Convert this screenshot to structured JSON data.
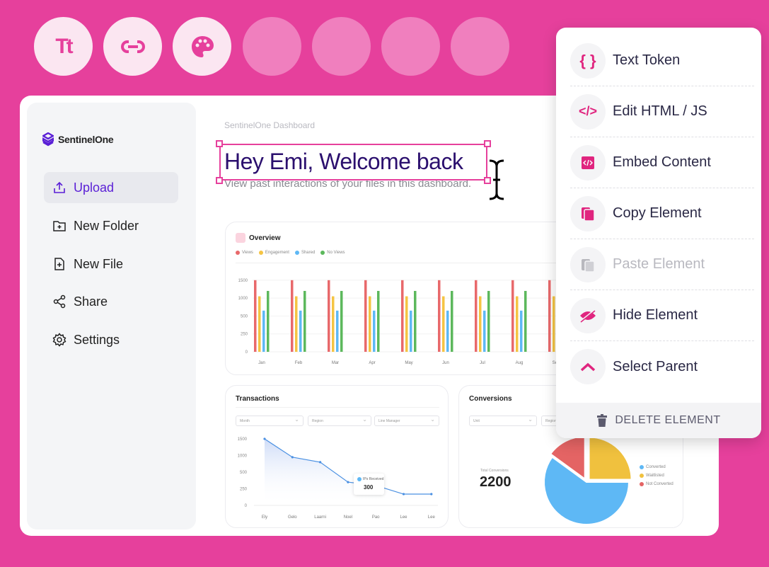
{
  "toolbar": {
    "tools": [
      {
        "icon": "text-size-icon",
        "label": "Tt"
      },
      {
        "icon": "link-icon"
      },
      {
        "icon": "palette-icon"
      }
    ],
    "empty_slots": 4
  },
  "sidebar": {
    "logo": "SentinelOne",
    "items": [
      {
        "label": "Upload",
        "icon": "upload-icon",
        "active": true
      },
      {
        "label": "New Folder",
        "icon": "folder-plus-icon"
      },
      {
        "label": "New File",
        "icon": "file-plus-icon"
      },
      {
        "label": "Share",
        "icon": "share-icon"
      },
      {
        "label": "Settings",
        "icon": "gear-icon"
      }
    ]
  },
  "header": {
    "breadcrumb": "SentinelOne Dashboard",
    "title": "Hey Emi, Welcome back",
    "subtitle": "View past interactions of your files in this dashboard."
  },
  "colors": {
    "brand": "#e6409c",
    "title": "#2b0f6e",
    "views": "#e8696b",
    "engagement": "#f5c443",
    "shared": "#5eb8f5",
    "no_views": "#5cb85c"
  },
  "overview": {
    "title": "Overview"
  },
  "transactions": {
    "title": "Transactions",
    "filters": [
      "Month",
      "Region",
      "Line Manager"
    ],
    "tooltip": {
      "label": "IPs Received",
      "value": "300"
    }
  },
  "conversions": {
    "title": "Conversions",
    "filters": [
      "Unit",
      "Region"
    ],
    "total_label": "Total Conversions",
    "total": "2200"
  },
  "context_menu": {
    "items": [
      {
        "label": "Text Token",
        "icon": "braces-icon",
        "glyph": "{ }"
      },
      {
        "label": "Edit HTML / JS",
        "icon": "code-icon",
        "glyph": "</>"
      },
      {
        "label": "Embed Content",
        "icon": "embed-icon"
      },
      {
        "label": "Copy Element",
        "icon": "copy-icon"
      },
      {
        "label": "Paste Element",
        "icon": "paste-icon",
        "disabled": true
      },
      {
        "label": "Hide Element",
        "icon": "eye-slash-icon"
      },
      {
        "label": "Select Parent",
        "icon": "chevron-up-icon"
      }
    ],
    "delete_label": "DELETE ELEMENT"
  },
  "chart_data": [
    {
      "type": "bar",
      "title": "Overview",
      "categories": [
        "Jan",
        "Feb",
        "Mar",
        "Apr",
        "May",
        "Jun",
        "Jul",
        "Aug",
        "Sep"
      ],
      "yticks": [
        "0",
        "250",
        "500",
        "1000",
        "1500"
      ],
      "legend": "top-left",
      "series": [
        {
          "name": "Views",
          "values": [
            1500,
            1500,
            1500,
            1500,
            1500,
            1500,
            1500,
            1500,
            1500
          ]
        },
        {
          "name": "Engagement",
          "values": [
            1050,
            1050,
            1050,
            1050,
            1050,
            1050,
            1050,
            1050,
            1050
          ]
        },
        {
          "name": "Shared",
          "values": [
            650,
            650,
            650,
            650,
            650,
            650,
            650,
            650,
            650
          ]
        },
        {
          "name": "No Views",
          "values": [
            1200,
            1200,
            1200,
            1200,
            1200,
            1200,
            1200,
            1200,
            1200
          ]
        }
      ]
    },
    {
      "type": "area",
      "title": "Transactions",
      "categories": [
        "Ely",
        "Gelo",
        "Laarni",
        "Noel",
        "Pao",
        "Lee",
        "Lee"
      ],
      "yticks": [
        "0",
        "250",
        "500",
        "1000",
        "1500"
      ],
      "values": [
        1500,
        950,
        800,
        350,
        300,
        170,
        170
      ]
    },
    {
      "type": "pie",
      "title": "Conversions",
      "legend": "right",
      "slices": [
        {
          "name": "Converted",
          "value": 60
        },
        {
          "name": "Waitlisted",
          "value": 25
        },
        {
          "name": "Not Converted",
          "value": 15
        }
      ]
    }
  ]
}
